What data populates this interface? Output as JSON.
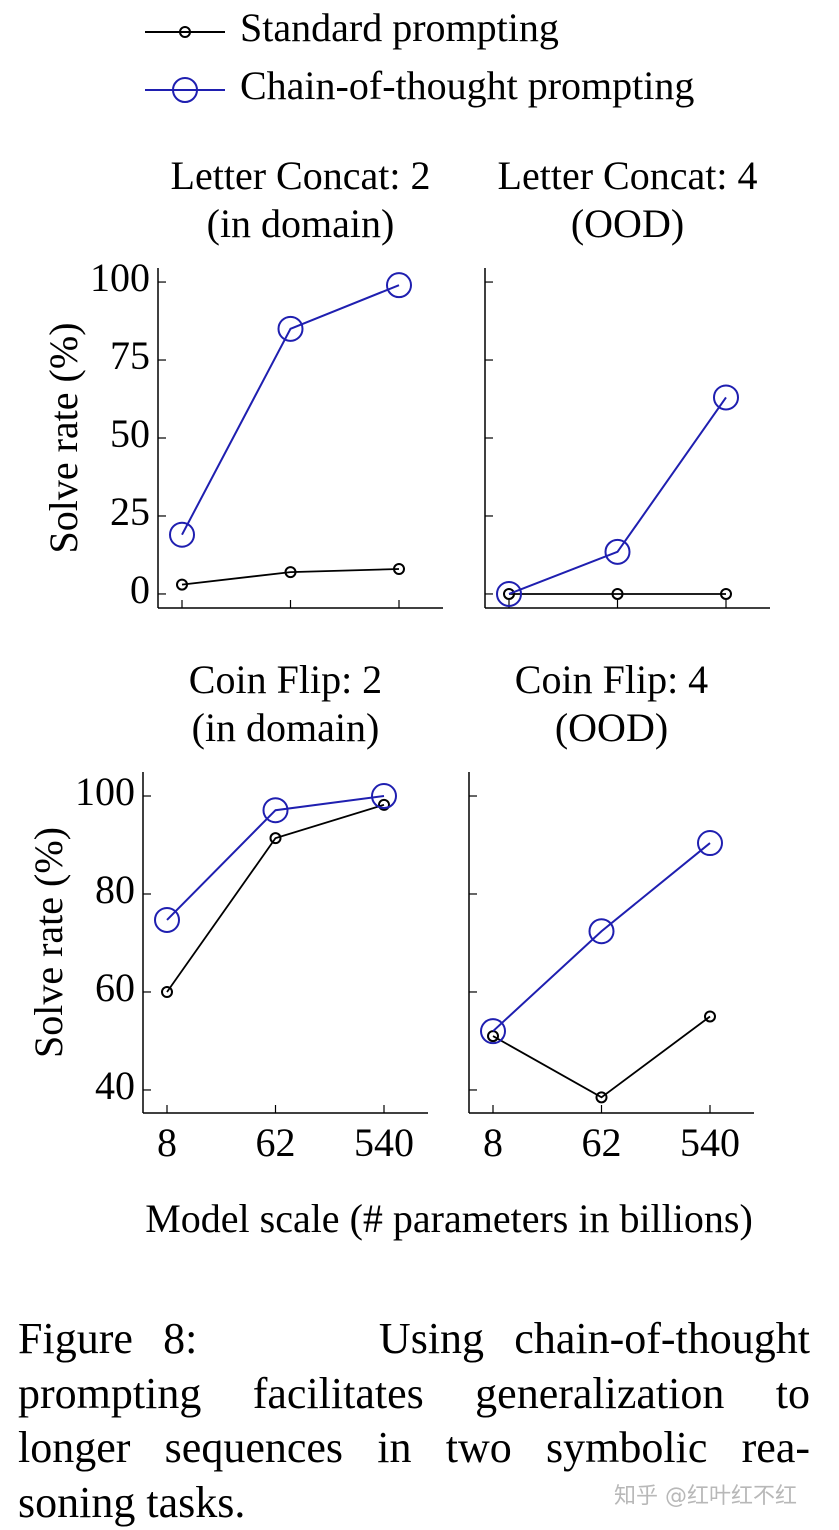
{
  "legend_names_from": "chart_data.0.series",
  "xlabel": "Model scale (# parameters in billions)",
  "caption": [
    "Figure 8:      Using chain-of-thought",
    "prompting facilitates generalization to",
    "longer sequences in two symbolic rea-",
    "soning tasks."
  ],
  "watermark": "知乎 @红叶红不红",
  "chart_data": [
    {
      "type": "line",
      "title": [
        "Letter Concat: 2",
        "(in domain)"
      ],
      "ylabel": "Solve rate (%)",
      "categories": [
        null,
        null,
        null
      ],
      "ylim": [
        -4.5,
        104.5
      ],
      "yticks": [
        0,
        25,
        50,
        75,
        100
      ],
      "series": [
        {
          "name": "Standard prompting",
          "color": "#000000",
          "values": [
            3,
            7,
            8
          ]
        },
        {
          "name": "Chain-of-thought prompting",
          "color": "#1f1fb0",
          "values": [
            19,
            85,
            99
          ]
        }
      ]
    },
    {
      "type": "line",
      "title": [
        "Letter Concat: 4",
        "(OOD)"
      ],
      "categories": [
        null,
        null,
        null
      ],
      "ylim": [
        -4.5,
        104.5
      ],
      "yticks": [
        0,
        25,
        50,
        75,
        100
      ],
      "ytick_labels": false,
      "series": [
        {
          "name": "Standard prompting",
          "color": "#000000",
          "values": [
            0,
            0,
            0
          ]
        },
        {
          "name": "Chain-of-thought prompting",
          "color": "#1f1fb0",
          "values": [
            0,
            13.5,
            63
          ]
        }
      ]
    },
    {
      "type": "line",
      "title": [
        "Coin Flip: 2",
        "(in domain)"
      ],
      "ylabel": "Solve rate (%)",
      "categories": [
        "8",
        "62",
        "540"
      ],
      "ylim": [
        35.3,
        104.9
      ],
      "yticks": [
        40,
        60,
        80,
        100
      ],
      "series": [
        {
          "name": "Standard prompting",
          "color": "#000000",
          "values": [
            60,
            91.4,
            98.2
          ]
        },
        {
          "name": "Chain-of-thought prompting",
          "color": "#1f1fb0",
          "values": [
            74.7,
            97.1,
            100
          ]
        }
      ]
    },
    {
      "type": "line",
      "title": [
        "Coin Flip: 4",
        "(OOD)"
      ],
      "categories": [
        "8",
        "62",
        "540"
      ],
      "ylim": [
        35.3,
        104.9
      ],
      "yticks": [
        40,
        60,
        80,
        100
      ],
      "ytick_labels": false,
      "series": [
        {
          "name": "Standard prompting",
          "color": "#000000",
          "values": [
            51,
            38.5,
            55
          ]
        },
        {
          "name": "Chain-of-thought prompting",
          "color": "#1f1fb0",
          "values": [
            52,
            72.4,
            90.4
          ]
        }
      ]
    }
  ]
}
